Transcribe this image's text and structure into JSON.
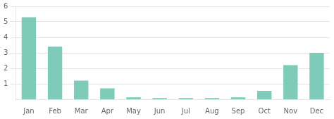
{
  "chart_data": {
    "type": "bar",
    "categories": [
      "Jan",
      "Feb",
      "Mar",
      "Apr",
      "May",
      "Jun",
      "Jul",
      "Aug",
      "Sep",
      "Oct",
      "Nov",
      "Dec"
    ],
    "values": [
      5.3,
      3.4,
      1.2,
      0.7,
      0.12,
      0.08,
      0.08,
      0.08,
      0.12,
      0.55,
      2.2,
      3.0
    ],
    "color": "#7ecbb9",
    "ylim": [
      0,
      6
    ],
    "yticks": [
      1,
      2,
      3,
      4,
      5,
      6
    ],
    "grid": true
  }
}
